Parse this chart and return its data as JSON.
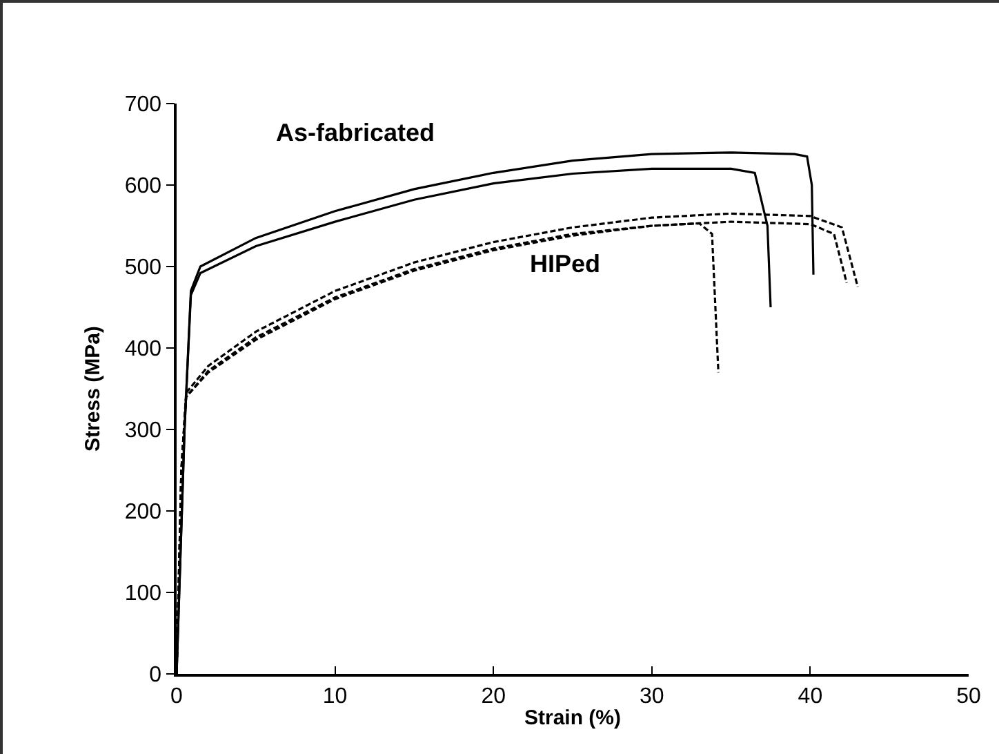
{
  "chart_data": {
    "type": "line",
    "xlabel": "Strain (%)",
    "ylabel": "Stress (MPa)",
    "xlim": [
      0,
      50
    ],
    "xticks": [
      0,
      10,
      20,
      30,
      40,
      50
    ],
    "ylim": [
      0,
      700
    ],
    "yticks": [
      0,
      100,
      200,
      300,
      400,
      500,
      600,
      700
    ],
    "marker": "none",
    "annotations": [
      "As-fabricated",
      "HIPed"
    ],
    "series": [
      {
        "color": "#000000",
        "line_style": "solid",
        "x": [
          0,
          0.5,
          0.9,
          1.5,
          5,
          10,
          15,
          20,
          25,
          30,
          35,
          39,
          39.8,
          40.1,
          40.2
        ],
        "values": [
          0,
          300,
          470,
          500,
          535,
          568,
          595,
          615,
          630,
          638,
          640,
          638,
          635,
          600,
          490
        ]
      },
      {
        "color": "#000000",
        "line_style": "solid",
        "x": [
          0,
          0.5,
          0.9,
          1.5,
          5,
          10,
          15,
          20,
          25,
          30,
          35,
          36.5,
          37.3,
          37.5
        ],
        "values": [
          0,
          300,
          465,
          492,
          525,
          555,
          582,
          602,
          614,
          620,
          620,
          615,
          550,
          450
        ]
      },
      {
        "color": "#000000",
        "line_style": "dashed",
        "x": [
          0,
          0.3,
          0.6,
          2,
          5,
          10,
          15,
          20,
          25,
          30,
          33,
          33.8,
          34.2
        ],
        "values": [
          0,
          250,
          340,
          370,
          410,
          460,
          495,
          520,
          538,
          550,
          553,
          540,
          370
        ]
      },
      {
        "color": "#000000",
        "line_style": "dashed",
        "x": [
          0,
          0.3,
          0.6,
          2,
          5,
          10,
          15,
          20,
          25,
          30,
          35,
          40,
          42,
          43
        ],
        "values": [
          0,
          250,
          345,
          378,
          420,
          470,
          505,
          530,
          548,
          560,
          565,
          562,
          548,
          475
        ]
      },
      {
        "color": "#000000",
        "line_style": "dashed",
        "x": [
          0,
          0.3,
          0.6,
          2,
          5,
          10,
          15,
          20,
          25,
          30,
          35,
          40,
          41.5,
          42.3
        ],
        "values": [
          0,
          250,
          340,
          372,
          413,
          462,
          497,
          522,
          540,
          550,
          555,
          552,
          540,
          480
        ]
      }
    ]
  }
}
